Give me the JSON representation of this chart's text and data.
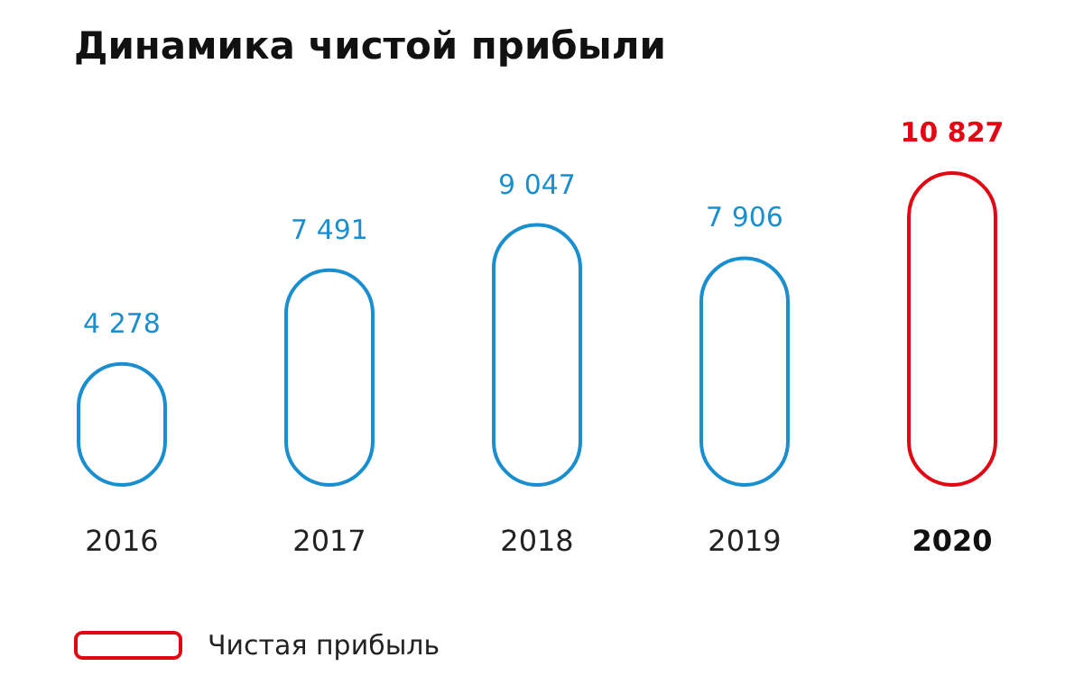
{
  "chart_data": {
    "type": "bar",
    "title": "Динамика чистой прибыли",
    "categories": [
      "2016",
      "2017",
      "2018",
      "2019",
      "2020"
    ],
    "series": [
      {
        "name": "Чистая прибыль",
        "color": "#e30613",
        "values": [
          4278,
          7491,
          9047,
          7906,
          10827
        ],
        "colors": [
          "#1a8fcf",
          "#1a8fcf",
          "#1a8fcf",
          "#1a8fcf",
          "#e30613"
        ]
      }
    ],
    "data_labels": true,
    "legend": "bottom left",
    "grid": false
  }
}
